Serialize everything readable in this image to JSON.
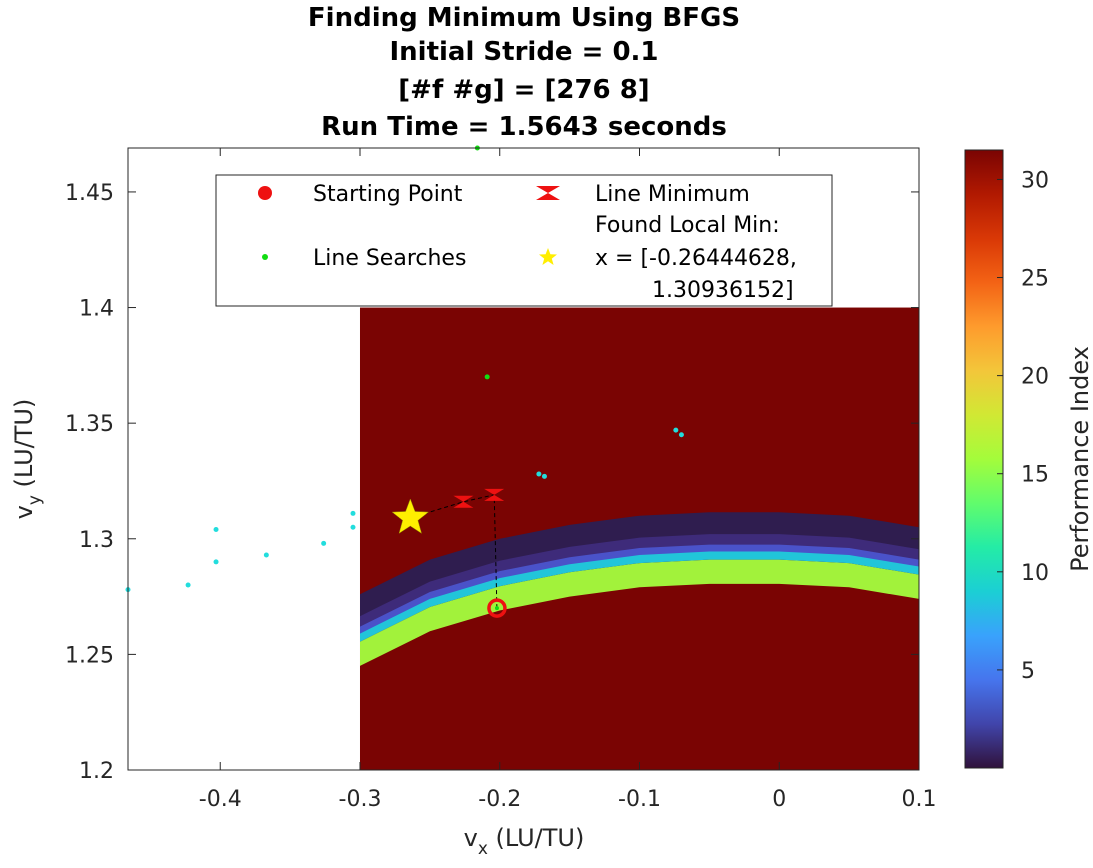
{
  "chart_data": {
    "type": "heatmap",
    "title_lines": [
      "Finding Minimum Using BFGS",
      "Initial Stride = 0.1",
      "[#f #g] = [276 8]",
      "Run Time = 1.5643 seconds"
    ],
    "xlabel": {
      "base": "v",
      "sub": "x",
      "rest": " (LU/TU)"
    },
    "ylabel": {
      "base": "v",
      "sub": "y",
      "rest": " (LU/TU)"
    },
    "xlim": [
      -0.466,
      0.1
    ],
    "ylim": [
      1.2,
      1.469
    ],
    "xticks": [
      -0.4,
      -0.3,
      -0.2,
      -0.1,
      0,
      0.1
    ],
    "xtick_labels": [
      "-0.4",
      "-0.3",
      "-0.2",
      "-0.1",
      "0",
      "0.1"
    ],
    "yticks": [
      1.2,
      1.25,
      1.3,
      1.35,
      1.4,
      1.45
    ],
    "ytick_labels": [
      "1.2",
      "1.25",
      "1.3",
      "1.35",
      "1.4",
      "1.45"
    ],
    "heatmap": {
      "x_range": [
        -0.3,
        0.1
      ],
      "y_range": [
        1.2,
        1.4
      ],
      "background_color": "#7a0403",
      "ridge_center": [
        [
          -0.3,
          1.268
        ],
        [
          -0.25,
          1.283
        ],
        [
          -0.2,
          1.292
        ],
        [
          -0.15,
          1.298
        ],
        [
          -0.1,
          1.302
        ],
        [
          -0.05,
          1.3035
        ],
        [
          0.0,
          1.3035
        ],
        [
          0.05,
          1.302
        ],
        [
          0.1,
          1.297
        ]
      ],
      "bands": [
        {
          "offset_top": 0.008,
          "offset_bottom": -0.0015,
          "color": "#2f1d4f"
        },
        {
          "offset_top": 0.0025,
          "offset_bottom": -0.006,
          "color": "#3e2b7a"
        },
        {
          "offset_top": -0.0015,
          "offset_bottom": -0.009,
          "color": "#4a52c9"
        },
        {
          "offset_top": -0.006,
          "offset_bottom": -0.0125,
          "color": "#21c5d9"
        },
        {
          "offset_top": -0.0125,
          "offset_bottom": -0.023,
          "color": "#a2f23b"
        }
      ]
    },
    "colorbar": {
      "label": "Performance Index",
      "range": [
        0,
        31.5
      ],
      "ticks": [
        5,
        10,
        15,
        20,
        25,
        30
      ],
      "tick_labels": [
        "5",
        "10",
        "15",
        "20",
        "25",
        "30"
      ],
      "colormap": [
        "#30123b",
        "#4145ab",
        "#4675ed",
        "#39a2fc",
        "#1bcfd4",
        "#24eca6",
        "#61fc6c",
        "#a4fc3b",
        "#d1e834",
        "#f3c63a",
        "#fe9b2d",
        "#f36315",
        "#d93806",
        "#b11901",
        "#7a0403"
      ]
    },
    "series": [
      {
        "name": "Starting Point",
        "marker": "circle",
        "color": "#ee1111",
        "points": [
          [
            -0.202,
            1.27
          ]
        ]
      },
      {
        "name": "Line Searches",
        "marker": "dot",
        "color": "#11dd11",
        "points": [
          [
            -0.216,
            1.469
          ],
          [
            -0.209,
            1.37
          ]
        ]
      },
      {
        "name": "Line Searches (cyan)",
        "marker": "dot",
        "color": "#22dddd",
        "points": [
          [
            -0.466,
            1.278
          ],
          [
            -0.423,
            1.28
          ],
          [
            -0.403,
            1.29
          ],
          [
            -0.403,
            1.304
          ],
          [
            -0.367,
            1.293
          ],
          [
            -0.326,
            1.298
          ],
          [
            -0.305,
            1.305
          ],
          [
            -0.305,
            1.311
          ],
          [
            -0.172,
            1.328
          ],
          [
            -0.168,
            1.327
          ],
          [
            -0.074,
            1.347
          ],
          [
            -0.07,
            1.345
          ]
        ]
      },
      {
        "name": "Line Minimum",
        "marker": "bowtie",
        "color": "#ee1111",
        "points": [
          [
            -0.204,
            1.319
          ],
          [
            -0.226,
            1.316
          ]
        ]
      },
      {
        "name": "Found Local Min",
        "marker": "star",
        "color": "#ffee00",
        "points": [
          [
            -0.264,
            1.309
          ]
        ]
      }
    ],
    "path": [
      [
        -0.202,
        1.27
      ],
      [
        -0.204,
        1.319
      ],
      [
        -0.226,
        1.316
      ],
      [
        -0.264,
        1.309
      ]
    ],
    "legend": {
      "placement": "top-center",
      "entries": [
        {
          "label": "Starting Point"
        },
        {
          "label": "Line Minimum"
        },
        {
          "label": "Line Searches"
        },
        {
          "label": "Found Local Min:"
        }
      ],
      "found_min_lines": [
        "x = [-0.26444628,",
        "1.30936152]"
      ]
    }
  }
}
